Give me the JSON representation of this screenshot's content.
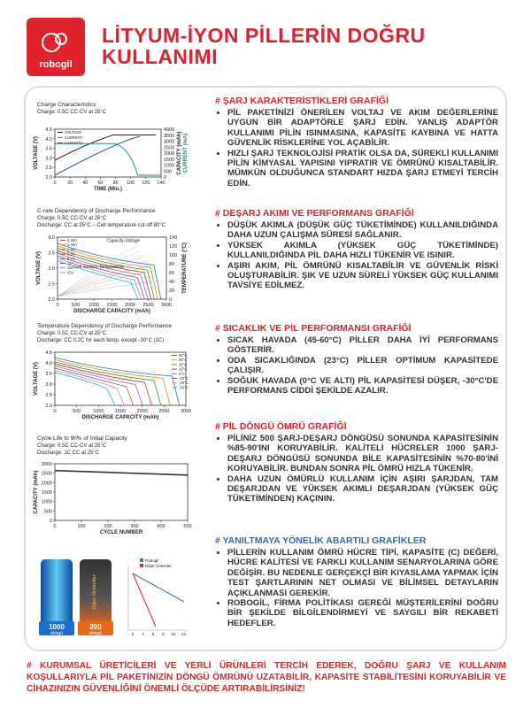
{
  "header": {
    "logo": "robogil",
    "title": "LİTYUM-İYON PİLLERİN DOĞRU KULLANIMI"
  },
  "charts": [
    {
      "title": "Charge Characteristics",
      "notes": [
        "Charge: 0.5C CC-CV at 25°C"
      ],
      "legend": [
        "VOLTAGE",
        "CURRENT",
        "CAPACITY"
      ],
      "ylabel": "VOLTAGE (V)",
      "xlabel": "TIME (Min.)",
      "y2labels": [
        "CAPACITY (mAh)",
        "CURRENT (mA)"
      ],
      "xticks": [
        "0",
        "20",
        "40",
        "60",
        "80",
        "100",
        "120",
        "140"
      ],
      "yticks": [
        "2.0",
        "2.5",
        "3.0",
        "3.5",
        "4.0",
        "4.5"
      ],
      "y2ticks": [
        "0",
        "500",
        "1000",
        "1500",
        "2000",
        "2500",
        "3000",
        "3500",
        "4000"
      ]
    },
    {
      "title": "C-rate Dependency of Discharge Performance",
      "notes": [
        "Charge: 0.5C CC-CV at 25°C",
        "Discharge: CC at 25°C – Cell temperature cut-off 80°C"
      ],
      "legend": [
        "0.26A",
        "1.45A",
        "2.9A",
        "5.8A",
        "8.7A",
        "11A",
        "15A",
        "20A"
      ],
      "annotations": [
        "Capacity-Voltage",
        "Cell Surface Temperature"
      ],
      "ylabel": "VOLTAGE (V)",
      "xlabel": "DISCHARGE CAPACITY (mAh)",
      "y2labels": [
        "TEMPERATURE (°C)"
      ],
      "xticks": [
        "0",
        "500",
        "1000",
        "1500",
        "2000",
        "2500",
        "3000"
      ],
      "yticks": [
        "2.0",
        "2.5",
        "3.0",
        "3.5",
        "4.0"
      ],
      "y2ticks": [
        "0",
        "20",
        "40",
        "60",
        "80",
        "100",
        "120",
        "140"
      ]
    },
    {
      "title": "Temperature Dependency of Discharge Performance",
      "notes": [
        "Charge: 0.5C CC-CV at 25°C",
        "Discharge: CC 0.2C for each temp. except -30°C (1C)"
      ],
      "legend": [
        "60°C",
        "45°C",
        "25°C",
        "10°C",
        "0°C",
        "-10°C",
        "-20°C",
        "-30°C"
      ],
      "ylabel": "VOLTAGE (V)",
      "xlabel": "DISCHARGE CAPACITY (mAh)",
      "xticks": [
        "0",
        "500",
        "1000",
        "1500",
        "2000",
        "2500",
        "3000"
      ],
      "yticks": [
        "2.0",
        "2.5",
        "3.0",
        "3.5",
        "4.0",
        "4.5"
      ]
    },
    {
      "title": "Cycle Life to 90% of Initial Capacity",
      "notes": [
        "Charge: 0.5C CC-CV at 25°C",
        "Discharge: 1C CC at 25°C"
      ],
      "ylabel": "CAPACITY (mAh)",
      "xlabel": "CYCLE NUMBER",
      "xticks": [
        "0",
        "100",
        "200",
        "300",
        "400",
        "500"
      ],
      "yticks": [
        "0",
        "500",
        "1000",
        "1500",
        "2000",
        "2500",
        "3000"
      ]
    }
  ],
  "comparison": {
    "robogil_cycles": "1000",
    "robogil_unit": "döngü",
    "other_cycles": "200",
    "other_unit": "döngü",
    "other_label": "Diğer Üreticiler",
    "legend": [
      "Robogil",
      "Diğer Üreticiler"
    ],
    "xticks": [
      "2",
      "4",
      "6",
      "8",
      "10",
      "12"
    ]
  },
  "sections": [
    {
      "heading": "# ŞARJ KARAKTERİSTİKLERİ GRAFİĞİ",
      "bullets": [
        "PİL PAKETİNİZİ ÖNERİLEN VOLTAJ VE AKIM DEĞERLERİNE UYGUN BİR ADAPTÖRLE ŞARJ EDİN. YANLIŞ ADAPTÖR KULLANIMI PİLİN ISINMASINA, KAPASİTE KAYBINA VE HATTA GÜVENLİK RİSKLERİNE YOL AÇABİLİR.",
        "HIZLI ŞARJ TEKNOLOJİSİ PRATİK OLSA DA, SÜREKLİ KULLANIMI PİLİN KİMYASAL YAPISINI YIPRATIR VE ÖMRÜNÜ KISALTABİLİR. MÜMKÜN OLDUĞUNCA STANDART HIZDA ŞARJ ETMEYİ TERCİH EDİN."
      ]
    },
    {
      "heading": "# DEŞARJ AKIMI VE PERFORMANS GRAFİĞİ",
      "bullets": [
        "DÜŞÜK AKIMLA (DÜŞÜK GÜÇ TÜKETİMİNDE) KULLANILDIĞINDA DAHA UZUN ÇALIŞMA SÜRESİ SAĞLANIR.",
        "YÜKSEK AKIMLA (YÜKSEK GÜÇ TÜKETİMİNDE) KULLANILDIĞINDA PİL DAHA HIZLI TÜKENİR VE ISINIR.",
        "AŞIRI AKIM, PİL ÖMRÜNÜ KISALTABİLİR VE GÜVENLİK RİSKİ OLUŞTURABİLİR. ŞIK VE UZUN SÜRELİ YÜKSEK GÜÇ KULLANIMI TAVSİYE EDİLMEZ."
      ]
    },
    {
      "heading": "# SICAKLIK VE PİL PERFORMANSI GRAFİĞİ",
      "bullets": [
        "SICAK HAVADA (45-60°C) PİLLER DAHA İYİ PERFORMANS GÖSTERİR.",
        "ODA SICAKLIĞINDA (23°C) PİLLER OPTİMUM KAPASİTEDE ÇALIŞIR.",
        "SOĞUK HAVADA (0°C VE ALTI) PİL KAPASİTESİ DÜŞER, -30°C'DE PERFORMANS CİDDİ ŞEKİLDE AZALIR."
      ]
    },
    {
      "heading": "# PİL DÖNGÜ ÖMRÜ GRAFİĞİ",
      "bullets": [
        "PİLİNİZ 500 ŞARJ-DEŞARJ DÖNGÜSÜ SONUNDA KAPASİTESİNİN %85-90'INI KORUYABİLİR. KALİTELİ HÜCRELER 1000 ŞARJ-DEŞARJ DÖNGÜSÜ SONUNDA BİLE KAPASİTESİNİN %70-80'İNİ KORUYABİLİR. BUNDAN SONRA PİL ÖMRÜ HIZLA TÜKENİR.",
        "DAHA UZUN ÖMÜRLÜ KULLANIM İÇİN AŞIRI ŞARJDAN, TAM DEŞARJDAN VE YÜKSEK AKIMLI DEŞARJDAN (YÜKSEK GÜÇ TÜKETİMİNDEN) KAÇININ."
      ]
    },
    {
      "heading": "# YANILTMAYA YÖNELİK ABARTILI GRAFİKLER",
      "bullets": [
        "PİLLERİN KULLANIM ÖMRÜ HÜCRE TİPİ, KAPASİTE (C) DEĞERİ, HÜCRE KALİTESİ VE FARKLI KULLANIM SENARYOLARINA GÖRE DEĞİŞİR. BU NEDENLE GERÇEKÇİ BİR KIYASLAMA YAPMAK İÇİN TEST ŞARTLARININ NET OLMASI VE BİLİMSEL DETAYLARIN AÇIKLANMASI GEREKİR.",
        "ROBOGİL, FİRMA POLİTİKASI GEREĞİ MÜŞTERİLERİNİ DOĞRU BİR ŞEKİLDE BİLGİLENDİRMEYİ VE SAYGILI BİR REKABETİ HEDEFLER."
      ]
    }
  ],
  "footer": "# KURUMSAL ÜRETİCİLERİ VE YERLİ ÜRÜNLERİ TERCİH EDEREK, DOĞRU ŞARJ VE KULLANIM KOŞULLARIYLA PİL PAKETİNİZİN DÖNGÜ ÖMRÜNÜ UZATABİLİR, KAPASİTE STABİLİTESİNİ KORUYABİLİR VE CİHAZINIZIN GÜVENLİĞİNİ ÖNEMLİ ÖLÇÜDE ARTIRABİLİRSİNİZ!"
}
